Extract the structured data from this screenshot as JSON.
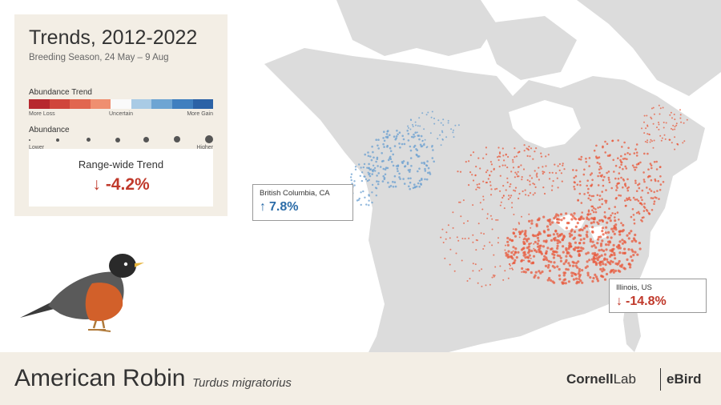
{
  "legend": {
    "title": "Trends, 2012-2022",
    "subtitle": "Breeding Season, 24 May – 9 Aug",
    "trend_label": "Abundance Trend",
    "trend_colors": [
      "#b7282e",
      "#d0463c",
      "#e1664f",
      "#ef8f70",
      "#fafafa",
      "#a9cbe5",
      "#6ea5d3",
      "#3f7fbf",
      "#2b62a6"
    ],
    "trend_ticks": {
      "loss": "More Loss",
      "uncertain": "Uncertain",
      "gain": "More Gain"
    },
    "abundance_label": "Abundance",
    "abundance_ticks": {
      "lower": "Lower",
      "higher": "Higher"
    },
    "range_wide": {
      "title": "Range-wide Trend",
      "arrow": "↓",
      "value": "-4.2%"
    }
  },
  "callouts": {
    "bc": {
      "name": "British Columbia, CA",
      "arrow": "↑",
      "value": "7.8%"
    },
    "il": {
      "name": "Illinois, US",
      "arrow": "↓",
      "value": "-14.8%"
    }
  },
  "footer": {
    "common_name": "American Robin",
    "scientific_name": "Turdus migratorius",
    "logo_cornell_bold": "Cornell",
    "logo_cornell_light": "Lab",
    "logo_ebird": "eBird"
  },
  "colors": {
    "land": "#dcdcdc",
    "water": "#ffffff",
    "decline": "#e85a3c",
    "increase": "#6a9fd0"
  }
}
